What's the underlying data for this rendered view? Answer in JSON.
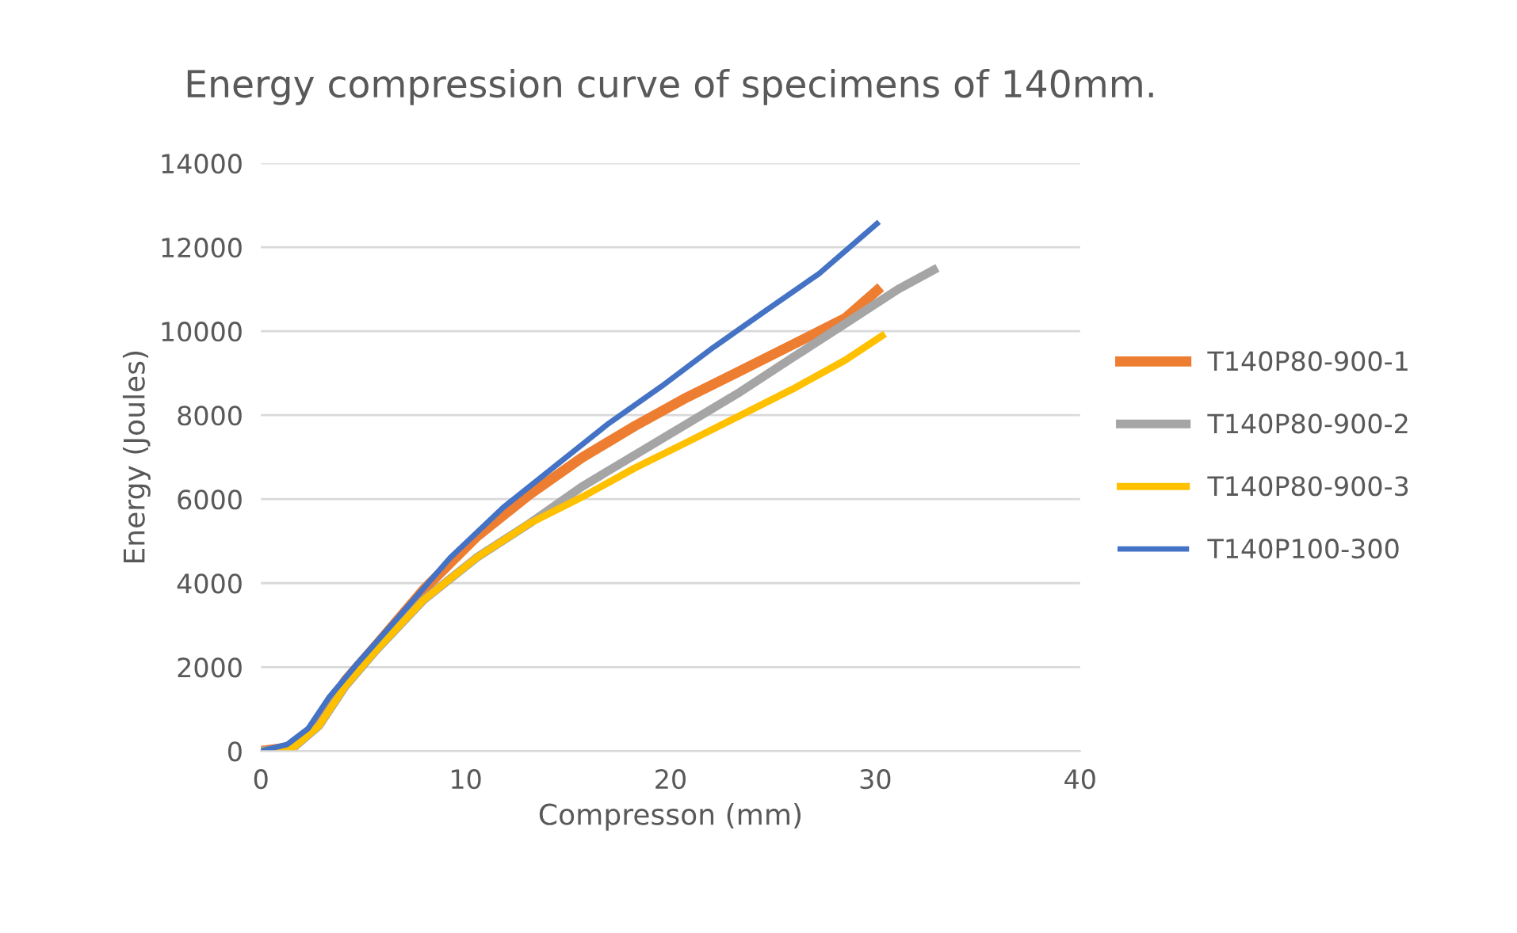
{
  "chart_data": {
    "type": "line",
    "title": "Energy compression curve of specimens of 140mm.",
    "xlabel": "Compresson (mm)",
    "ylabel": "Energy (Joules)",
    "xlim": [
      0,
      40
    ],
    "xticks": [
      0,
      10,
      20,
      30,
      40
    ],
    "ylim": [
      0,
      14000
    ],
    "yticks": [
      0,
      2000,
      4000,
      6000,
      8000,
      10000,
      12000,
      14000
    ],
    "grid": "y",
    "legend": "right",
    "marker": "none",
    "line_style": "solid",
    "series": [
      {
        "name": "T140P80-900-1",
        "color": "#ed7d31",
        "x": [
          0,
          1.54,
          2.83,
          4.11,
          5.66,
          7.97,
          10.54,
          13.11,
          15.68,
          18.25,
          20.82,
          23.39,
          25.96,
          28.53,
          30.08
        ],
        "values": [
          0,
          100,
          660,
          1670,
          2540,
          3860,
          5110,
          6110,
          6990,
          7740,
          8430,
          9050,
          9680,
          10310,
          10970
        ]
      },
      {
        "name": "T140P80-900-2",
        "color": "#a5a5a5",
        "x": [
          0,
          1.54,
          2.83,
          4.11,
          5.66,
          7.97,
          10.54,
          13.11,
          15.68,
          18.25,
          20.82,
          23.39,
          25.96,
          28.53,
          31.11,
          32.85
        ],
        "values": [
          0,
          60,
          600,
          1540,
          2420,
          3610,
          4610,
          5420,
          6300,
          7050,
          7800,
          8550,
          9370,
          10180,
          11000,
          11460
        ]
      },
      {
        "name": "T140P80-900-3",
        "color": "#ffc000",
        "x": [
          0,
          1.54,
          2.83,
          4.11,
          5.66,
          7.97,
          10.54,
          13.11,
          15.68,
          18.25,
          20.82,
          23.39,
          25.96,
          28.53,
          30.33
        ],
        "values": [
          0,
          60,
          600,
          1540,
          2420,
          3610,
          4610,
          5420,
          6050,
          6740,
          7360,
          7990,
          8620,
          9310,
          9890
        ]
      },
      {
        "name": "T140P100-300",
        "color": "#4472c4",
        "x": [
          0,
          1.29,
          2.31,
          3.34,
          4.63,
          6.68,
          9.25,
          11.83,
          14.4,
          16.97,
          19.54,
          22.11,
          24.68,
          27.25,
          30.08
        ],
        "values": [
          0,
          160,
          540,
          1290,
          2040,
          3170,
          4610,
          5800,
          6800,
          7800,
          8680,
          9620,
          10500,
          11370,
          12560
        ]
      }
    ]
  }
}
